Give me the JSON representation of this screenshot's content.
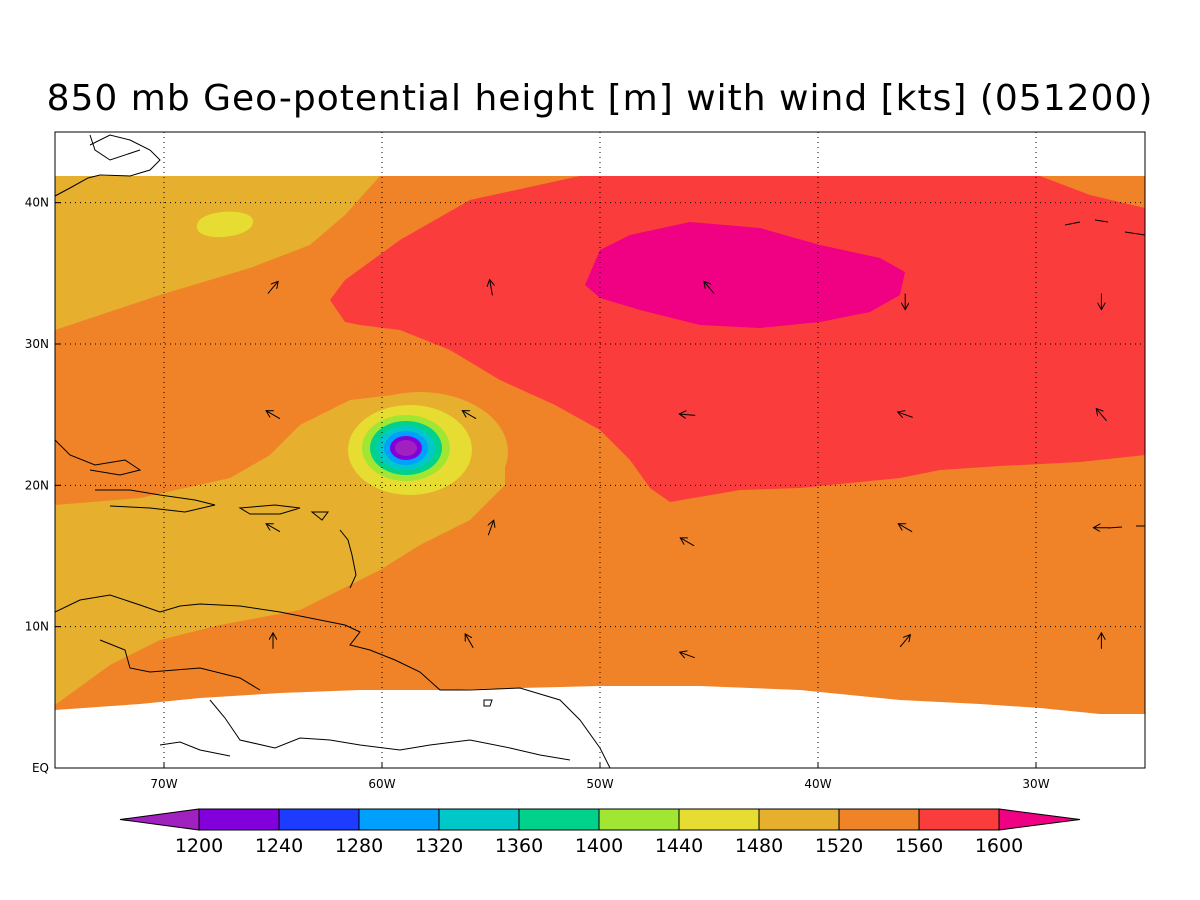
{
  "title": "850 mb Geo-potential height [m] with wind [kts] (051200)",
  "map": {
    "lon_range": [
      -75,
      -25
    ],
    "lat_range": [
      0,
      45
    ],
    "lon_ticks": [
      {
        "value": -70,
        "label": "70W"
      },
      {
        "value": -60,
        "label": "60W"
      },
      {
        "value": -50,
        "label": "50W"
      },
      {
        "value": -40,
        "label": "40W"
      },
      {
        "value": -30,
        "label": "30W"
      }
    ],
    "lat_ticks": [
      {
        "value": 0,
        "label": "EQ"
      },
      {
        "value": 10,
        "label": "10N"
      },
      {
        "value": 20,
        "label": "20N"
      },
      {
        "value": 30,
        "label": "30N"
      },
      {
        "value": 40,
        "label": "40N"
      }
    ],
    "gridlines": "dotted",
    "coastlines": true
  },
  "colorbar": {
    "levels": [
      "1200",
      "1240",
      "1280",
      "1320",
      "1360",
      "1400",
      "1440",
      "1480",
      "1520",
      "1560",
      "1600"
    ],
    "colors": [
      "#a020c0",
      "#8200dc",
      "#1e3cff",
      "#00a0ff",
      "#00c8c8",
      "#00d28c",
      "#a0e632",
      "#e6dc32",
      "#e6af2d",
      "#f08228",
      "#fa3c3c",
      "#f00082"
    ]
  },
  "wind_vectors": [
    {
      "lon": -65,
      "lat": 34,
      "dir_deg": 40
    },
    {
      "lon": -55,
      "lat": 34,
      "dir_deg": 350
    },
    {
      "lon": -45,
      "lat": 34,
      "dir_deg": 320
    },
    {
      "lon": -36,
      "lat": 33,
      "dir_deg": 180
    },
    {
      "lon": -27,
      "lat": 33,
      "dir_deg": 180
    },
    {
      "lon": -65,
      "lat": 25,
      "dir_deg": 300
    },
    {
      "lon": -56,
      "lat": 25,
      "dir_deg": 300
    },
    {
      "lon": -46,
      "lat": 25,
      "dir_deg": 275
    },
    {
      "lon": -36,
      "lat": 25,
      "dir_deg": 290
    },
    {
      "lon": -27,
      "lat": 25,
      "dir_deg": 320
    },
    {
      "lon": -65,
      "lat": 17,
      "dir_deg": 300
    },
    {
      "lon": -55,
      "lat": 17,
      "dir_deg": 20
    },
    {
      "lon": -46,
      "lat": 16,
      "dir_deg": 300
    },
    {
      "lon": -36,
      "lat": 17,
      "dir_deg": 300
    },
    {
      "lon": -27,
      "lat": 17,
      "dir_deg": 270
    },
    {
      "lon": -65,
      "lat": 9,
      "dir_deg": 0
    },
    {
      "lon": -56,
      "lat": 9,
      "dir_deg": 330
    },
    {
      "lon": -46,
      "lat": 8,
      "dir_deg": 290
    },
    {
      "lon": -36,
      "lat": 9,
      "dir_deg": 40
    },
    {
      "lon": -27,
      "lat": 9,
      "dir_deg": 0
    }
  ]
}
